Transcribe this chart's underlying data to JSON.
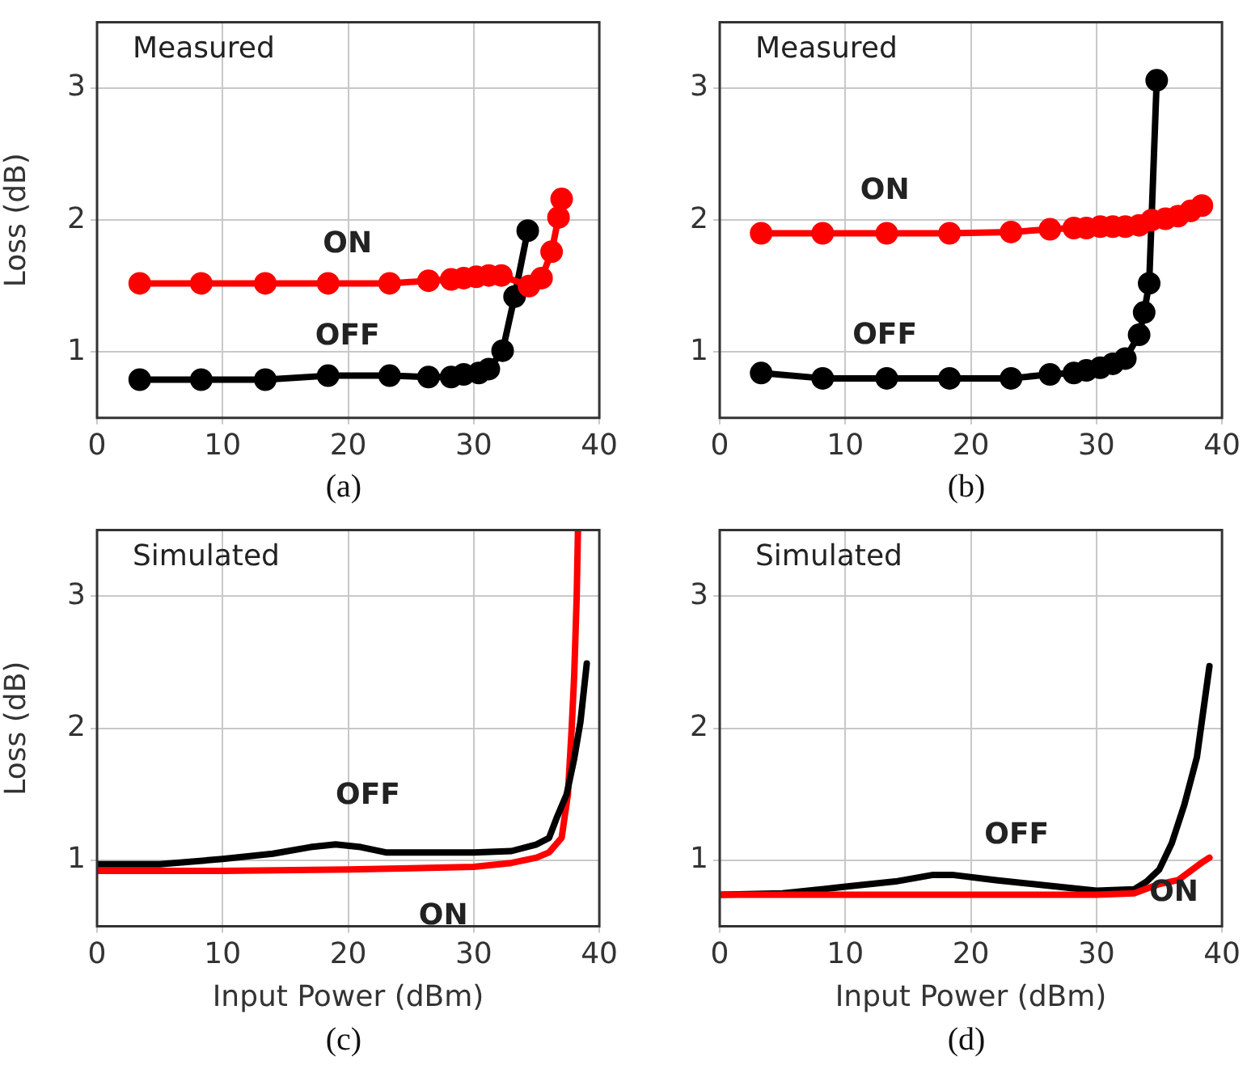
{
  "chart_data": [
    {
      "type": "line",
      "title": "Measured",
      "ylabel": "Loss (dB)",
      "annotations": [
        "(a)"
      ],
      "marker": "circle",
      "grid": true,
      "xlim": [
        0,
        40
      ],
      "xticks": [
        0,
        10,
        20,
        30,
        40
      ],
      "ylim": [
        0.5,
        3.5
      ],
      "yticks": [
        1,
        2,
        3
      ],
      "tick_labels": "xy",
      "series": [
        {
          "name": "ON",
          "color": "#ff0000",
          "x": [
            3.4,
            8.3,
            13.4,
            18.4,
            23.3,
            26.4,
            28.2,
            29.2,
            30.2,
            31.2,
            32.2,
            34.4,
            35.4,
            36.2,
            36.75,
            37
          ],
          "values": [
            1.52,
            1.52,
            1.52,
            1.52,
            1.52,
            1.54,
            1.55,
            1.56,
            1.57,
            1.58,
            1.58,
            1.5,
            1.56,
            1.76,
            2.02,
            2.16
          ]
        },
        {
          "name": "OFF",
          "color": "#000000",
          "x": [
            3.4,
            8.3,
            13.4,
            18.4,
            23.3,
            26.4,
            28.2,
            29.2,
            30.4,
            31.2,
            32.3,
            33.25,
            34.3
          ],
          "values": [
            0.79,
            0.79,
            0.79,
            0.82,
            0.82,
            0.81,
            0.81,
            0.83,
            0.84,
            0.87,
            1.01,
            1.42,
            1.92
          ]
        }
      ]
    },
    {
      "type": "line",
      "title": "Measured",
      "annotations": [
        "(b)"
      ],
      "marker": "circle",
      "grid": true,
      "xlim": [
        0,
        40
      ],
      "xticks": [
        0,
        10,
        20,
        30,
        40
      ],
      "ylim": [
        0.5,
        3.5
      ],
      "yticks": [
        1,
        2,
        3
      ],
      "series": [
        {
          "name": "ON",
          "color": "#ff0000",
          "x": [
            3.3,
            8.2,
            13.3,
            18.3,
            23.2,
            26.3,
            28.2,
            29.2,
            30.3,
            31.3,
            32.3,
            33.4,
            34.4,
            35.5,
            36.5,
            37.5,
            38.4
          ],
          "values": [
            1.9,
            1.9,
            1.9,
            1.9,
            1.91,
            1.93,
            1.94,
            1.94,
            1.95,
            1.95,
            1.95,
            1.96,
            2.0,
            2.01,
            2.03,
            2.07,
            2.11
          ]
        },
        {
          "name": "OFF",
          "color": "#000000",
          "x": [
            3.3,
            8.2,
            13.3,
            18.3,
            23.2,
            26.3,
            28.2,
            29.2,
            30.3,
            31.3,
            32.3,
            33.4,
            33.8,
            34.2,
            34.8
          ],
          "values": [
            0.84,
            0.8,
            0.8,
            0.8,
            0.8,
            0.83,
            0.84,
            0.86,
            0.88,
            0.91,
            0.95,
            1.13,
            1.3,
            1.52,
            3.06
          ]
        }
      ]
    },
    {
      "type": "line",
      "title": "Simulated",
      "xlabel": "Input Power (dBm)",
      "ylabel": "Loss (dB)",
      "annotations": [
        "(c)"
      ],
      "marker": "none",
      "grid": true,
      "xlim": [
        0,
        40
      ],
      "xticks": [
        0,
        10,
        20,
        30,
        40
      ],
      "ylim": [
        0.5,
        3.5
      ],
      "yticks": [
        1,
        2,
        3
      ],
      "series": [
        {
          "name": "OFF",
          "color": "#000000",
          "x": [
            0,
            5,
            10,
            14,
            17,
            19,
            21,
            23,
            25,
            30,
            33,
            35,
            36,
            36.6,
            37.4,
            38,
            38.5,
            39
          ],
          "values": [
            0.97,
            0.97,
            1.01,
            1.05,
            1.1,
            1.12,
            1.1,
            1.06,
            1.06,
            1.06,
            1.07,
            1.12,
            1.17,
            1.32,
            1.5,
            1.77,
            2.05,
            2.49
          ]
        },
        {
          "name": "ON",
          "color": "#ff0000",
          "x": [
            0,
            10,
            20,
            25,
            30,
            33,
            35,
            36,
            37,
            37.5,
            37.8,
            38,
            38.2,
            38.3
          ],
          "values": [
            0.92,
            0.92,
            0.93,
            0.94,
            0.95,
            0.98,
            1.02,
            1.06,
            1.17,
            1.5,
            2.0,
            2.4,
            3.0,
            3.5
          ]
        }
      ]
    },
    {
      "type": "line",
      "title": "Simulated",
      "xlabel": "Input Power (dBm)",
      "annotations": [
        "(d)"
      ],
      "marker": "none",
      "grid": true,
      "xlim": [
        0,
        40
      ],
      "xticks": [
        0,
        10,
        20,
        30,
        40
      ],
      "ylim": [
        0.5,
        3.5
      ],
      "yticks": [
        1,
        2,
        3
      ],
      "series": [
        {
          "name": "ON",
          "color": "#ff0000",
          "x": [
            0,
            10,
            20,
            30,
            33,
            35,
            36.5,
            37.5,
            38.5,
            39
          ],
          "values": [
            0.74,
            0.74,
            0.74,
            0.74,
            0.75,
            0.82,
            0.85,
            0.92,
            0.99,
            1.02
          ]
        },
        {
          "name": "OFF",
          "color": "#000000",
          "x": [
            0,
            5,
            10,
            14,
            17,
            18.5,
            22,
            26,
            30,
            33,
            34,
            35,
            36,
            37,
            38,
            39
          ],
          "values": [
            0.74,
            0.75,
            0.8,
            0.84,
            0.89,
            0.89,
            0.85,
            0.81,
            0.77,
            0.78,
            0.84,
            0.93,
            1.13,
            1.42,
            1.78,
            2.47
          ]
        }
      ]
    }
  ]
}
